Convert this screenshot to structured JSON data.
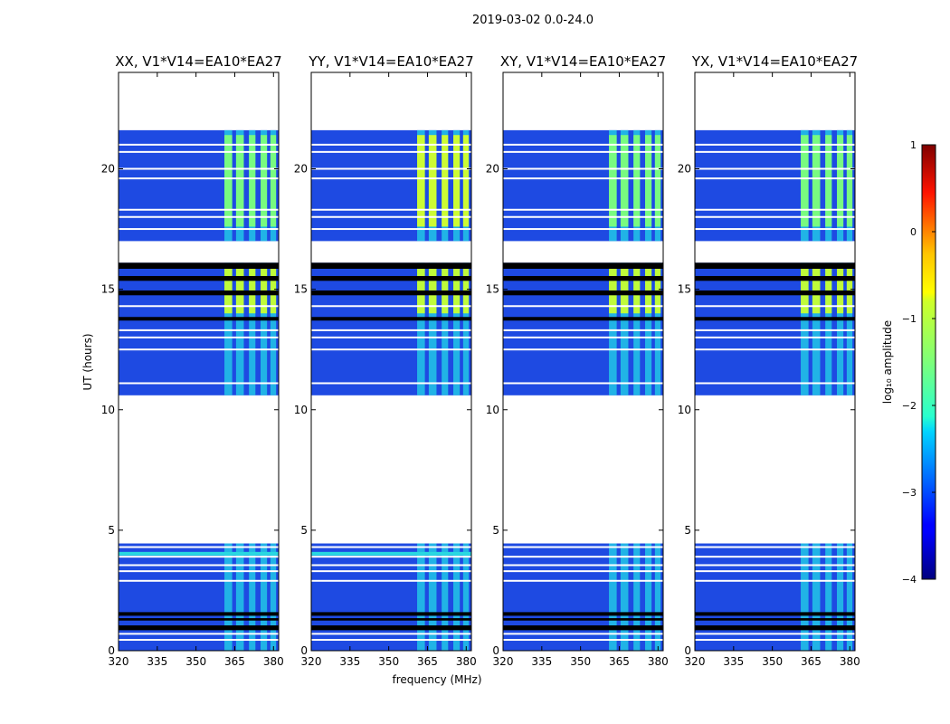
{
  "figure_title": "2019-03-02 0.0-24.0",
  "chart_data": {
    "type": "heatmap",
    "title": "2019-03-02 0.0-24.0",
    "xlabel": "frequency (MHz)",
    "ylabel": "UT (hours)",
    "xlim": [
      320,
      382
    ],
    "ylim": [
      0,
      24
    ],
    "xticks": [
      320,
      335,
      350,
      365,
      380
    ],
    "yticks": [
      0,
      5,
      10,
      15,
      20
    ],
    "panels": [
      {
        "title": "XX, V1*V14=EA10*EA27",
        "pol": "XX"
      },
      {
        "title": "YY, V1*V14=EA10*EA27",
        "pol": "YY"
      },
      {
        "title": "XY, V1*V14=EA10*EA27",
        "pol": "XY"
      },
      {
        "title": "YX, V1*V14=EA10*EA27",
        "pol": "YX"
      }
    ],
    "data_blocks_ut": [
      [
        0.0,
        4.45
      ],
      [
        10.6,
        16.1
      ],
      [
        17.0,
        21.6
      ]
    ],
    "gap_lines_ut": [
      0.45,
      0.7,
      2.9,
      3.3,
      3.55,
      3.9,
      4.3,
      11.1,
      12.5,
      13.0,
      13.3,
      14.3,
      17.5,
      18.0,
      18.3,
      19.6,
      20.0,
      20.7,
      21.0
    ],
    "flagged_rows_ut": [
      [
        0.85,
        1.05
      ],
      [
        1.25,
        1.35
      ],
      [
        1.45,
        1.6
      ],
      [
        13.7,
        13.85
      ],
      [
        14.75,
        14.95
      ],
      [
        15.35,
        15.55
      ],
      [
        15.85,
        16.1
      ]
    ],
    "rfi_bands_mhz": [
      [
        361.0,
        364.0
      ],
      [
        365.5,
        368.5
      ],
      [
        370.5,
        373.0
      ],
      [
        375.0,
        377.5
      ],
      [
        378.8,
        381.0
      ]
    ],
    "colorbar": {
      "label": "log₁₀ amplitude",
      "min": -4,
      "max": 1,
      "ticks": [
        "1",
        "0",
        "−1",
        "−2",
        "−3",
        "−4"
      ],
      "colormap": "jet"
    }
  }
}
